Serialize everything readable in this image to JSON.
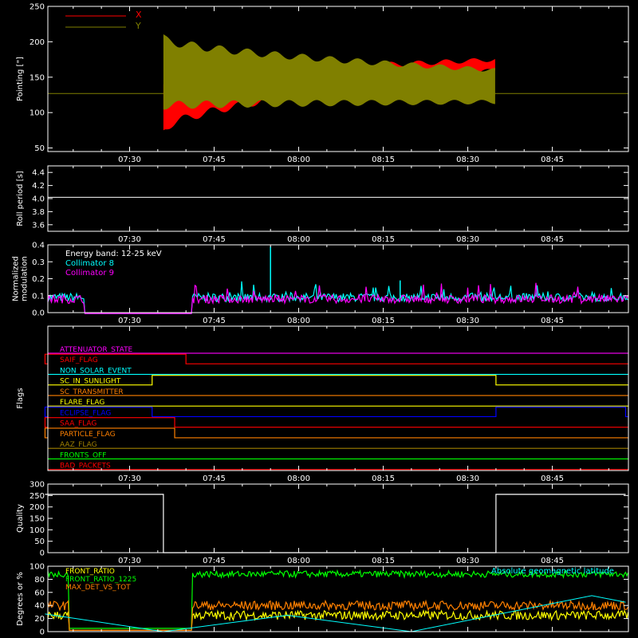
{
  "colors": {
    "background": "#000000",
    "axes": "#ffffff",
    "red": "#ff0000",
    "olive": "#808000",
    "white": "#ffffff",
    "cyan": "#00ffff",
    "magenta": "#ff00ff",
    "yellow": "#ffff00",
    "orange": "#ff8000",
    "blue": "#0000ff",
    "green": "#00ff00",
    "darkgold": "#a08000"
  },
  "time_ticks": [
    "07:30",
    "07:45",
    "08:00",
    "08:15",
    "08:30",
    "08:45"
  ],
  "chart_data": [
    {
      "id": "pointing",
      "type": "area",
      "ylabel": "Pointing [\"]",
      "ylim": [
        45,
        250
      ],
      "yticks": [
        "50",
        "100",
        "150",
        "200",
        "250"
      ],
      "series": [
        {
          "name": "X",
          "color": "#ff0000",
          "x_range": [
            "07:36",
            "08:35"
          ],
          "envelope_start": [
            75,
            140
          ],
          "envelope_end": [
            160,
            175
          ]
        },
        {
          "name": "Y",
          "color": "#808000",
          "x_range": [
            "07:36",
            "08:35"
          ],
          "envelope_start": [
            110,
            205
          ],
          "envelope_end": [
            115,
            160
          ]
        }
      ],
      "reference_level": 127
    },
    {
      "id": "roll_period",
      "type": "line",
      "ylabel": "Roll period [s]",
      "ylim": [
        3.5,
        4.5
      ],
      "yticks": [
        "3.6",
        "3.8",
        "4.0",
        "4.2",
        "4.4"
      ],
      "value": 4.02
    },
    {
      "id": "modulation",
      "type": "line",
      "ylabel_lines": [
        "Normalized",
        "modulation"
      ],
      "ylim": [
        0,
        0.4
      ],
      "yticks": [
        "0.0",
        "0.1",
        "0.2",
        "0.3",
        "0.4"
      ],
      "legend_title": "Energy band: 12-25 keV",
      "series": [
        {
          "name": "Collimator 8",
          "color": "#00ffff",
          "baseline": 0.09,
          "spikes": [
            [
              "07:55",
              0.39
            ],
            [
              "08:18",
              0.19
            ],
            [
              "08:34",
              0.11
            ]
          ]
        },
        {
          "name": "Collimator 9",
          "color": "#ff00ff",
          "baseline": 0.08,
          "spikes": []
        }
      ],
      "gap_range": [
        "07:22",
        "07:41"
      ]
    },
    {
      "id": "flags",
      "type": "line",
      "ylabel": "Flags",
      "flags": [
        {
          "name": "ATTENUATOR_STATE",
          "color": "#ff00ff",
          "high": []
        },
        {
          "name": "SAIF_FLAG",
          "color": "#ff0000",
          "high": [
            [
              "07:15",
              "07:40"
            ]
          ]
        },
        {
          "name": "NON_SOLAR_EVENT",
          "color": "#00ffff",
          "high": []
        },
        {
          "name": "SC_IN_SUNLIGHT",
          "color": "#ffff00",
          "high": [
            [
              "07:34",
              "08:35"
            ]
          ]
        },
        {
          "name": "SC_TRANSMITTER",
          "color": "#ff8000",
          "high": []
        },
        {
          "name": "FLARE_FLAG",
          "color": "#ffff00",
          "high": []
        },
        {
          "name": "ECLIPSE_FLAG",
          "color": "#0000ff",
          "high": [
            [
              "07:15",
              "07:34"
            ],
            [
              "08:35",
              "08:58"
            ]
          ]
        },
        {
          "name": "SAA_FLAG",
          "color": "#ff0000",
          "high": [
            [
              "07:15",
              "07:38"
            ]
          ]
        },
        {
          "name": "PARTICLE_FLAG",
          "color": "#ff8000",
          "high": [
            [
              "07:15",
              "07:38"
            ]
          ]
        },
        {
          "name": "AAZ_FLAG",
          "color": "#a08000",
          "high": []
        },
        {
          "name": "FRONTS_OFF",
          "color": "#00ff00",
          "high": []
        },
        {
          "name": "BAD_PACKETS",
          "color": "#ff0000",
          "high": []
        }
      ]
    },
    {
      "id": "quality",
      "type": "line",
      "ylabel": "Quality",
      "ylim": [
        0,
        300
      ],
      "yticks": [
        "0",
        "50",
        "100",
        "150",
        "200",
        "250",
        "300"
      ],
      "segments": [
        {
          "x_range": [
            "07:15",
            "07:36"
          ],
          "value": 255
        },
        {
          "x_range": [
            "07:36",
            "08:35"
          ],
          "value": 0
        },
        {
          "x_range": [
            "08:35",
            "08:58"
          ],
          "value": 255
        }
      ]
    },
    {
      "id": "ratios",
      "type": "line",
      "ylabel": "Degrees or %",
      "ylim": [
        0,
        100
      ],
      "yticks": [
        "0",
        "20",
        "40",
        "60",
        "80",
        "100"
      ],
      "series": [
        {
          "name": "FRONT_RATIO",
          "color": "#ffff00",
          "level": 25
        },
        {
          "name": "FRONT_RATIO_1225",
          "color": "#00ff00",
          "level": 88
        },
        {
          "name": "MAX_DET_VS_TOT",
          "color": "#ff8000",
          "level": 40
        },
        {
          "name": "Absolute geomagnetic latitude",
          "color": "#00ffff",
          "points": [
            [
              "07:15",
              27
            ],
            [
              "07:36",
              0
            ],
            [
              "07:58",
              25
            ],
            [
              "08:20",
              0
            ],
            [
              "08:52",
              55
            ],
            [
              "08:58",
              45
            ]
          ]
        }
      ]
    }
  ]
}
